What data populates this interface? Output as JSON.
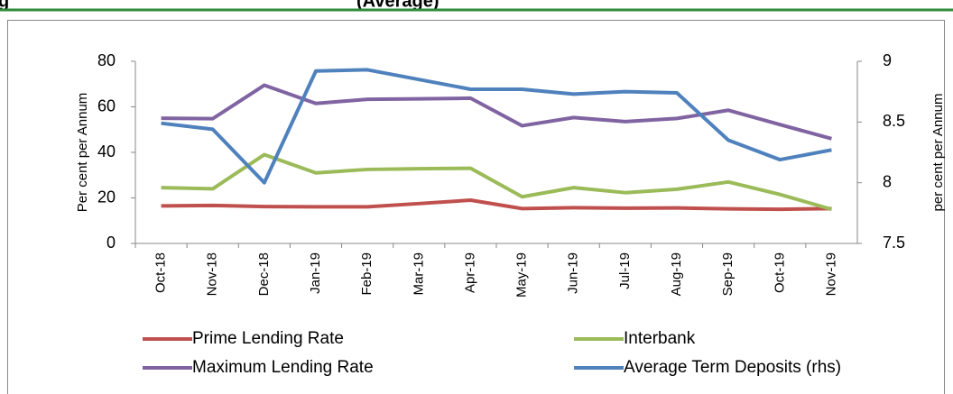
{
  "chart_data": {
    "type": "line",
    "title_fragments": [
      "g",
      "(Average)"
    ],
    "categories": [
      "Oct-18",
      "Nov-18",
      "Dec-18",
      "Jan-19",
      "Feb-19",
      "Mar-19",
      "Apr-19",
      "May-19",
      "Jun-19",
      "Jul-19",
      "Aug-19",
      "Sep-19",
      "Oct-19",
      "Nov-19"
    ],
    "series": [
      {
        "name": "Prime Lending Rate",
        "color": "#c0504d",
        "values": [
          16.5,
          16.7,
          16.2,
          16.1,
          16.1,
          17.5,
          19,
          15.3,
          15.7,
          15.5,
          15.6,
          15.2,
          15,
          15.3
        ]
      },
      {
        "name": "Interbank",
        "color": "#9bbb59",
        "values": [
          24.5,
          24,
          39,
          31,
          32.5,
          32.8,
          33,
          20.5,
          24.5,
          22.3,
          23.8,
          27,
          21.5,
          15
        ]
      },
      {
        "name": "Maximum Lending Rate",
        "color": "#8064a2",
        "values": [
          55,
          54.8,
          69.5,
          61.5,
          63.3,
          63.5,
          63.8,
          51.7,
          55.3,
          53.5,
          54.9,
          58.5,
          52.2,
          46
        ]
      },
      {
        "name": "Average Term Deposits (rhs)",
        "color": "#4f81bd",
        "axis": "y2",
        "values": [
          8.49,
          8.44,
          8.0,
          8.92,
          8.93,
          8.85,
          8.77,
          8.77,
          8.73,
          8.75,
          8.74,
          8.35,
          8.19,
          8.27
        ]
      }
    ],
    "ylabel": "Per cent per Annum",
    "y2label": "per cent per Annum",
    "ylim": [
      0,
      80
    ],
    "yticks": [
      0,
      20,
      40,
      60,
      80
    ],
    "y2lim": [
      7.5,
      9
    ],
    "y2ticks": [
      7.5,
      8,
      8.5,
      9
    ]
  }
}
